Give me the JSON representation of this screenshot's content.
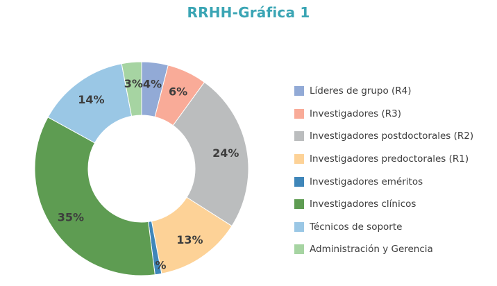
{
  "chart_data": {
    "type": "pie",
    "title": "RRHH-Gráfica 1",
    "categories": [
      "Líderes de grupo (R4)",
      "Investigadores (R3)",
      "Investigadores postdoctorales (R2)",
      "Investigadores predoctorales (R1)",
      "Investigadores eméritos",
      "Investigadores clínicos",
      "Técnicos de soporte",
      "Administración y Gerencia"
    ],
    "values": [
      4,
      6,
      24,
      13,
      1,
      35,
      14,
      3
    ],
    "data_labels": [
      "4%",
      "6%",
      "24%",
      "13%",
      "1%",
      "35%",
      "14%",
      "3%"
    ],
    "colors": [
      "#92aad6",
      "#f9ab98",
      "#bbbdbe",
      "#fdd297",
      "#3f86b9",
      "#5e9c52",
      "#9ac7e5",
      "#a6d4a2"
    ],
    "donut": true,
    "legend_position": "right"
  }
}
